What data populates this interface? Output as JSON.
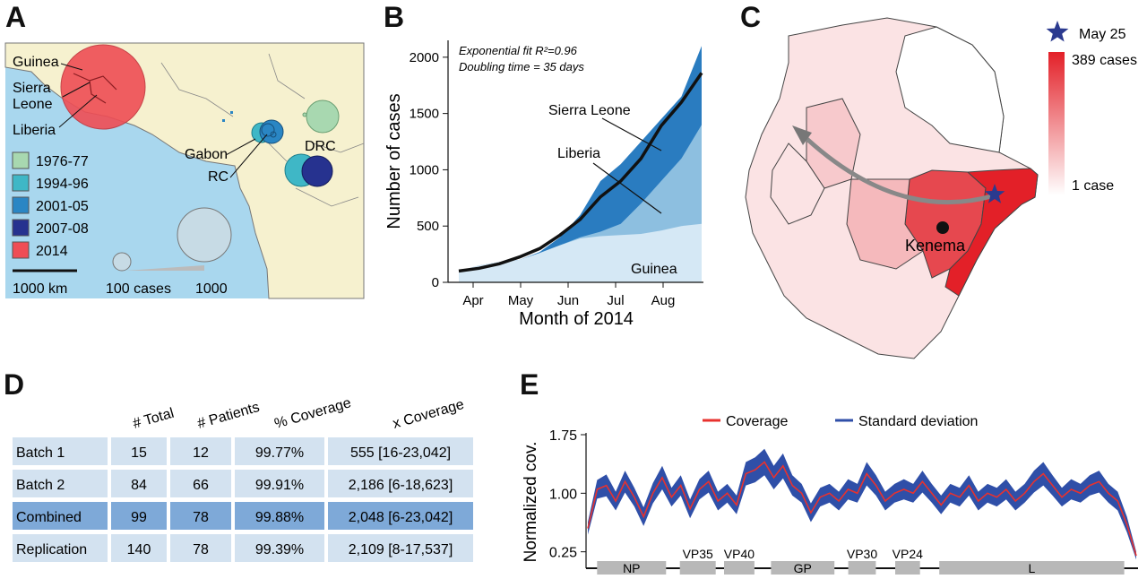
{
  "panels": {
    "a": {
      "letter": "A",
      "labels": {
        "guinea": "Guinea",
        "sierra_leone_1": "Sierra",
        "sierra_leone_2": "Leone",
        "liberia": "Liberia",
        "gabon": "Gabon",
        "rc": "RC",
        "drc": "DRC"
      },
      "legend": [
        {
          "label": "1976-77",
          "color": "#a8d8b0"
        },
        {
          "label": "1994-96",
          "color": "#3fb7c6"
        },
        {
          "label": "2001-05",
          "color": "#2a86c4"
        },
        {
          "label": "2007-08",
          "color": "#26328f"
        },
        {
          "label": "2014",
          "color": "#ef4d55"
        }
      ],
      "scale_bar": "1000 km",
      "size_legend": {
        "small": "100 cases",
        "large": "1000"
      }
    },
    "b": {
      "letter": "B",
      "fit_line1": "Exponential fit R²=0.96",
      "fit_line2": "Doubling time = 35 days",
      "region_labels": {
        "sierra_leone": "Sierra Leone",
        "liberia": "Liberia",
        "guinea": "Guinea"
      }
    },
    "c": {
      "letter": "C",
      "star_label": "May 25",
      "max_label": "389 cases",
      "min_label": "1 case",
      "city": "Kenema"
    },
    "d": {
      "letter": "D",
      "headers": [
        "# Total",
        "# Patients",
        "% Coverage",
        "x Coverage"
      ],
      "rows": [
        {
          "name": "Batch 1",
          "total": "15",
          "patients": "12",
          "pct": "99.77%",
          "x": "555 [16-23,042]"
        },
        {
          "name": "Batch 2",
          "total": "84",
          "patients": "66",
          "pct": "99.91%",
          "x": "2,186 [6-18,623]"
        },
        {
          "name": "Combined",
          "total": "99",
          "patients": "78",
          "pct": "99.88%",
          "x": "2,048 [6-23,042]"
        },
        {
          "name": "Replication",
          "total": "140",
          "patients": "78",
          "pct": "99.39%",
          "x": "2,109 [8-17,537]"
        }
      ]
    },
    "e": {
      "letter": "E",
      "ylabel": "Normalized cov.",
      "legend": {
        "coverage": "Coverage",
        "sd": "Standard deviation"
      },
      "genes": [
        {
          "name": "NP",
          "start": 0.02,
          "end": 0.145
        },
        {
          "name": "VP35",
          "start": 0.17,
          "end": 0.235
        },
        {
          "name": "VP40",
          "start": 0.25,
          "end": 0.305
        },
        {
          "name": "GP",
          "start": 0.335,
          "end": 0.45
        },
        {
          "name": "VP30",
          "start": 0.475,
          "end": 0.525
        },
        {
          "name": "VP24",
          "start": 0.56,
          "end": 0.605
        },
        {
          "name": "L",
          "start": 0.64,
          "end": 0.975
        }
      ]
    }
  },
  "chart_data": [
    {
      "type": "area",
      "panel": "B",
      "xlabel": "Month of 2014",
      "ylabel": "Number of cases",
      "categories": [
        "Apr",
        "May",
        "Jun",
        "Jul",
        "Aug"
      ],
      "yticks": [
        0,
        500,
        1000,
        1500,
        2000
      ],
      "ylim": [
        0,
        2150
      ],
      "x": [
        "Mar 22",
        "Apr 1",
        "Apr 15",
        "May 1",
        "May 15",
        "Jun 1",
        "Jun 15",
        "Jul 1",
        "Jul 10",
        "Jul 20",
        "Aug 1",
        "Aug 10",
        "Aug 20"
      ],
      "series": [
        {
          "name": "Guinea",
          "values": [
            100,
            150,
            180,
            200,
            260,
            330,
            390,
            410,
            420,
            430,
            460,
            500,
            520
          ]
        },
        {
          "name": "Liberia",
          "values": [
            100,
            150,
            180,
            200,
            260,
            330,
            400,
            450,
            520,
            700,
            900,
            1100,
            1400
          ]
        },
        {
          "name": "Sierra Leone",
          "values": [
            100,
            150,
            180,
            200,
            270,
            400,
            600,
            900,
            1050,
            1250,
            1450,
            1650,
            2100
          ]
        }
      ],
      "fit": {
        "name": "Exponential fit",
        "values": [
          100,
          125,
          165,
          225,
          300,
          420,
          560,
          760,
          900,
          1100,
          1390,
          1600,
          1860
        ]
      }
    },
    {
      "type": "line",
      "panel": "E",
      "ylabel": "Normalized cov.",
      "yticks": [
        0.25,
        1.0,
        1.75
      ],
      "ylim": [
        0.2,
        1.75
      ],
      "series": [
        {
          "name": "Coverage",
          "values": [
            0.55,
            1.05,
            1.1,
            0.9,
            1.15,
            0.95,
            0.7,
            1.0,
            1.2,
            0.95,
            1.1,
            0.8,
            1.05,
            1.15,
            0.9,
            1.0,
            0.85,
            1.25,
            1.3,
            1.4,
            1.2,
            1.35,
            1.1,
            1.0,
            0.75,
            0.95,
            1.0,
            0.9,
            1.05,
            1.0,
            1.25,
            1.1,
            0.9,
            1.0,
            1.05,
            1.0,
            1.15,
            1.0,
            0.85,
            1.0,
            0.95,
            1.1,
            0.9,
            1.0,
            0.95,
            1.05,
            0.9,
            1.0,
            1.15,
            1.25,
            1.1,
            0.95,
            1.05,
            1.0,
            1.1,
            1.15,
            1.0,
            0.9,
            0.6,
            0.2
          ]
        },
        {
          "name": "Standard deviation",
          "values": [
            0.08,
            0.12,
            0.14,
            0.12,
            0.14,
            0.12,
            0.12,
            0.13,
            0.15,
            0.12,
            0.13,
            0.12,
            0.13,
            0.14,
            0.12,
            0.12,
            0.12,
            0.15,
            0.16,
            0.17,
            0.15,
            0.16,
            0.13,
            0.12,
            0.12,
            0.12,
            0.12,
            0.12,
            0.13,
            0.12,
            0.15,
            0.13,
            0.12,
            0.12,
            0.13,
            0.12,
            0.14,
            0.12,
            0.12,
            0.12,
            0.12,
            0.13,
            0.12,
            0.12,
            0.12,
            0.13,
            0.12,
            0.12,
            0.14,
            0.15,
            0.13,
            0.12,
            0.13,
            0.12,
            0.13,
            0.14,
            0.12,
            0.12,
            0.1,
            0.05
          ]
        }
      ]
    }
  ]
}
